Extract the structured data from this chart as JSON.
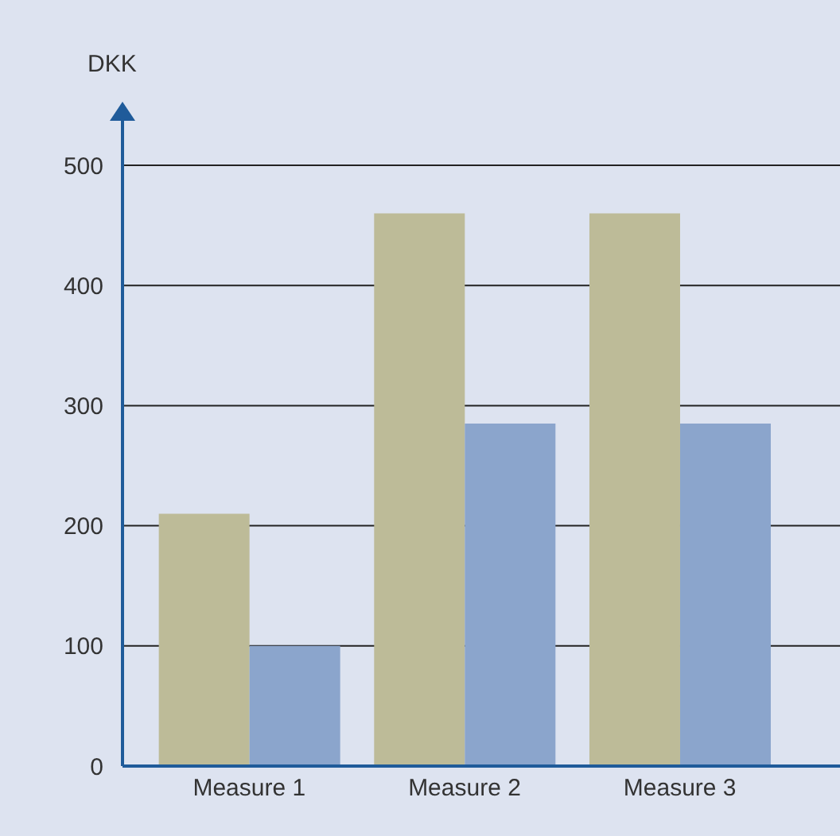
{
  "chart_data": {
    "type": "bar",
    "ylabel": "DKK",
    "categories": [
      "Measure 1",
      "Measure 2",
      "Measure 3"
    ],
    "series": [
      {
        "color": "#bdbb98",
        "values": [
          210,
          460,
          460
        ]
      },
      {
        "color": "#8ba5cc",
        "values": [
          100,
          285,
          285
        ]
      }
    ],
    "ylim": [
      0,
      500
    ],
    "yticks": [
      0,
      100,
      200,
      300,
      400,
      500
    ],
    "grid": "y",
    "legend": false
  }
}
